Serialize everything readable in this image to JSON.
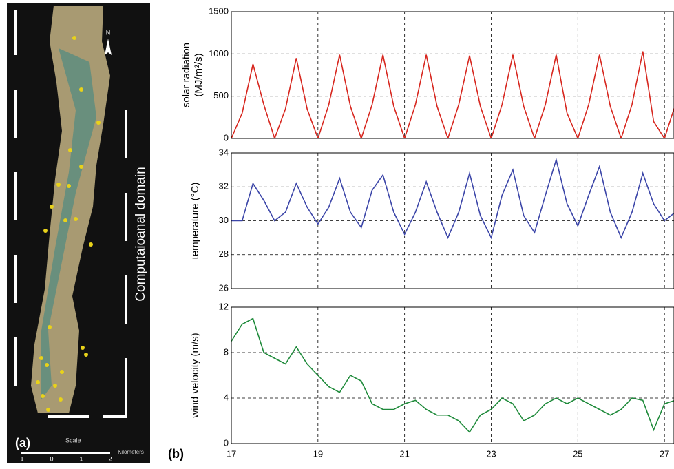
{
  "image_panel": {
    "label": "(a)",
    "domain_label": "Computaioanal domain",
    "north": "N",
    "scale_title": "Scale",
    "scale_unit": "Kilometers",
    "scale_ticks": [
      "1",
      "0",
      "1",
      "2"
    ]
  },
  "panel_b_label": "(b)",
  "chart_data": [
    {
      "type": "line",
      "ylabel": [
        "solar radiation",
        "(MJ/m²/s)"
      ],
      "color": "#d7261e",
      "x": [
        17,
        17.25,
        17.5,
        17.75,
        18,
        18.25,
        18.5,
        18.75,
        19,
        19.25,
        19.5,
        19.75,
        20,
        20.25,
        20.5,
        20.75,
        21,
        21.25,
        21.5,
        21.75,
        22,
        22.25,
        22.5,
        22.75,
        23,
        23.25,
        23.5,
        23.75,
        24,
        24.25,
        24.5,
        24.75,
        25,
        25.25,
        25.5,
        25.75,
        26,
        26.25,
        26.5,
        26.75,
        27,
        27.25
      ],
      "values": [
        0,
        300,
        880,
        400,
        0,
        350,
        950,
        350,
        0,
        400,
        990,
        380,
        0,
        400,
        990,
        380,
        0,
        400,
        990,
        380,
        0,
        400,
        980,
        380,
        0,
        400,
        990,
        380,
        0,
        400,
        990,
        300,
        0,
        400,
        990,
        380,
        0,
        400,
        1030,
        200,
        0,
        400
      ],
      "xlim": [
        17,
        27.22
      ],
      "xticks": [
        17,
        19,
        21,
        23,
        25,
        27
      ],
      "ylim": [
        0,
        1500
      ],
      "yticks": [
        0,
        500,
        1000,
        1500
      ],
      "grid": true
    },
    {
      "type": "line",
      "ylabel": [
        "temperature (°C)"
      ],
      "color": "#3b45a8",
      "x": [
        17,
        17.25,
        17.5,
        17.75,
        18,
        18.25,
        18.5,
        18.75,
        19,
        19.25,
        19.5,
        19.75,
        20,
        20.25,
        20.5,
        20.75,
        21,
        21.25,
        21.5,
        21.75,
        22,
        22.25,
        22.5,
        22.75,
        23,
        23.25,
        23.5,
        23.75,
        24,
        24.25,
        24.5,
        24.75,
        25,
        25.25,
        25.5,
        25.75,
        26,
        26.25,
        26.5,
        26.75,
        27,
        27.25
      ],
      "values": [
        30,
        30,
        32.2,
        31.2,
        30,
        30.5,
        32.2,
        30.8,
        29.8,
        30.8,
        32.5,
        30.5,
        29.6,
        31.8,
        32.7,
        30.5,
        29.2,
        30.5,
        32.3,
        30.5,
        29,
        30.5,
        32.8,
        30.3,
        29,
        31.5,
        33,
        30.3,
        29.3,
        31.5,
        33.6,
        31,
        29.7,
        31.5,
        33.2,
        30.5,
        29,
        30.5,
        32.8,
        31,
        30,
        30.5
      ],
      "xlim": [
        17,
        27.22
      ],
      "xticks": [
        17,
        19,
        21,
        23,
        25,
        27
      ],
      "ylim": [
        26,
        34
      ],
      "yticks": [
        26,
        28,
        30,
        32,
        34
      ],
      "grid": true
    },
    {
      "type": "line",
      "ylabel": [
        "wind velocity (m/s)"
      ],
      "color": "#1e8a3a",
      "x": [
        17,
        17.25,
        17.5,
        17.75,
        18,
        18.25,
        18.5,
        18.75,
        19,
        19.25,
        19.5,
        19.75,
        20,
        20.25,
        20.5,
        20.75,
        21,
        21.25,
        21.5,
        21.75,
        22,
        22.25,
        22.5,
        22.75,
        23,
        23.25,
        23.5,
        23.75,
        24,
        24.25,
        24.5,
        24.75,
        25,
        25.25,
        25.5,
        25.75,
        26,
        26.25,
        26.5,
        26.75,
        27,
        27.25
      ],
      "values": [
        9,
        10.5,
        11,
        8,
        7.5,
        7,
        8.5,
        7,
        6,
        5,
        4.5,
        6,
        5.5,
        3.5,
        3,
        3,
        3.5,
        3.8,
        3,
        2.5,
        2.5,
        2,
        1,
        2.5,
        3,
        4,
        3.5,
        2,
        2.5,
        3.5,
        4,
        3.5,
        4,
        3.5,
        3,
        2.5,
        3,
        4,
        3.8,
        1.2,
        3.5,
        3.8
      ],
      "xlim": [
        17,
        27.22
      ],
      "xticks": [
        17,
        19,
        21,
        23,
        25,
        27
      ],
      "ylim": [
        0,
        12
      ],
      "yticks": [
        0,
        4,
        8,
        12
      ],
      "grid": true
    }
  ]
}
